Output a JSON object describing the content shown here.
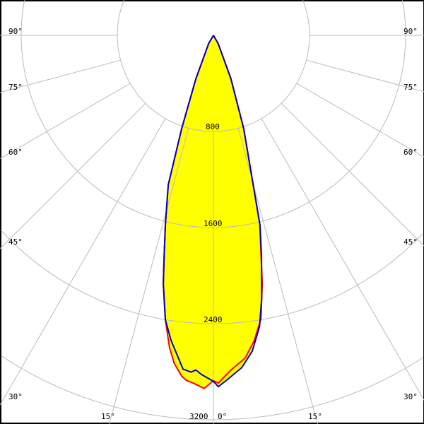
{
  "chart_data": {
    "type": "polar",
    "angle_unit": "degrees",
    "angle_labels": [
      "90°",
      "75°",
      "60°",
      "45°",
      "30°",
      "15°",
      "0°"
    ],
    "angle_ticks": [
      90,
      75,
      60,
      45,
      30,
      15,
      0
    ],
    "radial_labels": [
      "800",
      "1600",
      "2400",
      "3200"
    ],
    "radial_ticks": [
      800,
      1600,
      2400,
      3200
    ],
    "grid": true,
    "fill_color": "#ffff00",
    "series": [
      {
        "color": "#ff0000",
        "points": [
          [
            -90,
            0
          ],
          [
            -30,
            80
          ],
          [
            -22,
            390
          ],
          [
            -18.8,
            820
          ],
          [
            -16.8,
            1300
          ],
          [
            -14.2,
            1630
          ],
          [
            -12.6,
            1880
          ],
          [
            -11.4,
            2110
          ],
          [
            -9.6,
            2400
          ],
          [
            -8,
            2625
          ],
          [
            -6.8,
            2750
          ],
          [
            -5.3,
            2850
          ],
          [
            -4.5,
            2880
          ],
          [
            -3.3,
            2900
          ],
          [
            -1.5,
            2940
          ],
          [
            0,
            2876
          ],
          [
            0.8,
            2895
          ],
          [
            3,
            2790
          ],
          [
            5.6,
            2700
          ],
          [
            7.6,
            2565
          ],
          [
            9.5,
            2395
          ],
          [
            11.1,
            2110
          ],
          [
            13.8,
            1620
          ],
          [
            18,
            815
          ],
          [
            22,
            390
          ],
          [
            30,
            80
          ],
          [
            90,
            0
          ]
        ]
      },
      {
        "color": "#0000cc",
        "points": [
          [
            -90,
            0
          ],
          [
            -30,
            80
          ],
          [
            -22,
            390
          ],
          [
            -18.8,
            820
          ],
          [
            -16.8,
            1300
          ],
          [
            -14.2,
            1630
          ],
          [
            -12.6,
            1880
          ],
          [
            -11.4,
            2110
          ],
          [
            -9.6,
            2400
          ],
          [
            -7.9,
            2565
          ],
          [
            -5.2,
            2790
          ],
          [
            -3.8,
            2810
          ],
          [
            -3,
            2790
          ],
          [
            -2,
            2825
          ],
          [
            0,
            2880
          ],
          [
            0.8,
            2925
          ],
          [
            2.4,
            2865
          ],
          [
            4.9,
            2775
          ],
          [
            7,
            2650
          ],
          [
            9,
            2455
          ],
          [
            10.4,
            2225
          ],
          [
            12.3,
            1880
          ],
          [
            13.8,
            1625
          ],
          [
            18,
            817
          ],
          [
            22,
            390
          ],
          [
            30,
            80
          ],
          [
            90,
            0
          ]
        ]
      }
    ]
  }
}
